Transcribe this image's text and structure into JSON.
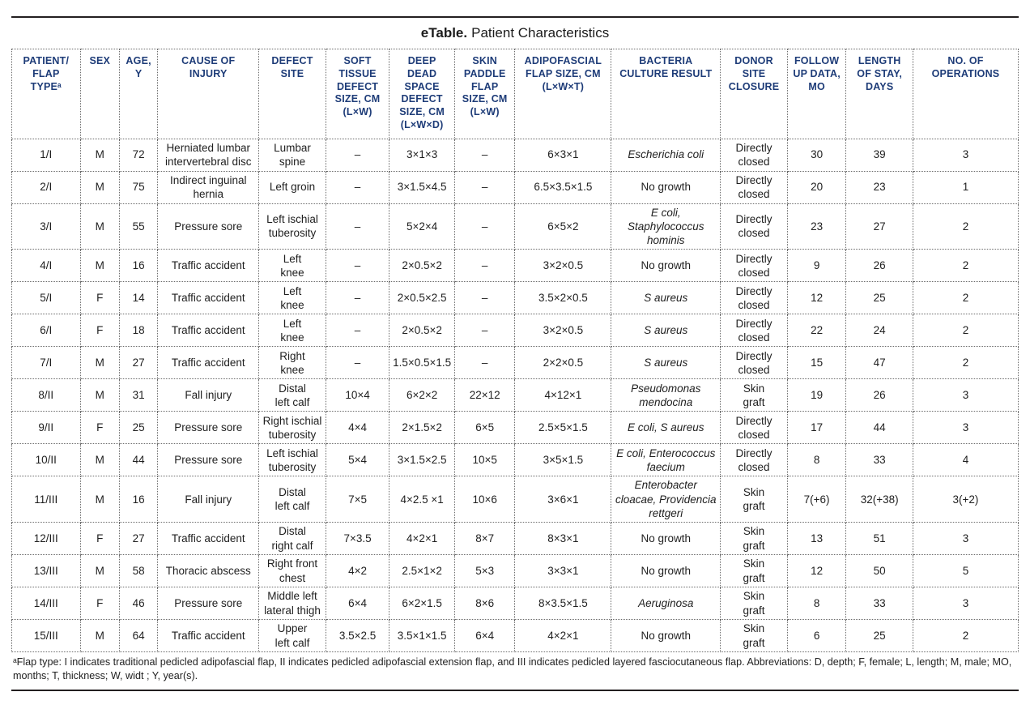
{
  "title": {
    "bold": "eTable.",
    "text": "Patient Characteristics"
  },
  "table": {
    "columns": [
      {
        "id": "patient-flap-type",
        "label": "PATIENT/\nFLAP\nTYPEᵃ"
      },
      {
        "id": "sex",
        "label": "SEX"
      },
      {
        "id": "age",
        "label": "AGE,\nY"
      },
      {
        "id": "cause-of-injury",
        "label": "CAUSE OF\nINJURY"
      },
      {
        "id": "defect-site",
        "label": "DEFECT\nSITE"
      },
      {
        "id": "soft-tissue-defect-size",
        "label": "SOFT\nTISSUE\nDEFECT\nSIZE, CM\n(L×W)"
      },
      {
        "id": "deep-dead-space-defect-size",
        "label": "DEEP\nDEAD\nSPACE\nDEFECT\nSIZE, CM\n(L×W×D)"
      },
      {
        "id": "skin-paddle-flap-size",
        "label": "SKIN\nPADDLE\nFLAP\nSIZE, CM\n(L×W)"
      },
      {
        "id": "adipofascial-flap-size",
        "label": "ADIPOFASCIAL\nFLAP SIZE, CM\n(L×W×T)"
      },
      {
        "id": "bacteria-culture-result",
        "label": "BACTERIA\nCULTURE RESULT"
      },
      {
        "id": "donor-site-closure",
        "label": "DONOR\nSITE\nCLOSURE"
      },
      {
        "id": "follow-up-data",
        "label": "FOLLOW\nUP DATA,\nMO"
      },
      {
        "id": "length-of-stay",
        "label": "LENGTH\nOF STAY,\nDAYS"
      },
      {
        "id": "no-of-operations",
        "label": "NO. OF\nOPERATIONS"
      }
    ],
    "rows": [
      {
        "bacteria_italic": true,
        "cells": [
          "1/I",
          "M",
          "72",
          "Herniated lumbar\nintervertebral disc",
          "Lumbar\nspine",
          "–",
          "3×1×3",
          "–",
          "6×3×1",
          "Escherichia coli",
          "Directly\nclosed",
          "30",
          "39",
          "3"
        ]
      },
      {
        "bacteria_italic": false,
        "cells": [
          "2/I",
          "M",
          "75",
          "Indirect inguinal\nhernia",
          "Left groin",
          "–",
          "3×1.5×4.5",
          "–",
          "6.5×3.5×1.5",
          "No growth",
          "Directly\nclosed",
          "20",
          "23",
          "1"
        ]
      },
      {
        "bacteria_italic": true,
        "cells": [
          "3/I",
          "M",
          "55",
          "Pressure sore",
          "Left ischial\ntuberosity",
          "–",
          "5×2×4",
          "–",
          "6×5×2",
          "E coli,\nStaphylococcus\nhominis",
          "Directly\nclosed",
          "23",
          "27",
          "2"
        ]
      },
      {
        "bacteria_italic": false,
        "cells": [
          "4/I",
          "M",
          "16",
          "Traffic accident",
          "Left\nknee",
          "–",
          "2×0.5×2",
          "–",
          "3×2×0.5",
          "No growth",
          "Directly\nclosed",
          "9",
          "26",
          "2"
        ]
      },
      {
        "bacteria_italic": true,
        "cells": [
          "5/I",
          "F",
          "14",
          "Traffic accident",
          "Left\nknee",
          "–",
          "2×0.5×2.5",
          "–",
          "3.5×2×0.5",
          "S aureus",
          "Directly\nclosed",
          "12",
          "25",
          "2"
        ]
      },
      {
        "bacteria_italic": true,
        "cells": [
          "6/I",
          "F",
          "18",
          "Traffic accident",
          "Left\nknee",
          "–",
          "2×0.5×2",
          "–",
          "3×2×0.5",
          "S aureus",
          "Directly\nclosed",
          "22",
          "24",
          "2"
        ]
      },
      {
        "bacteria_italic": true,
        "cells": [
          "7/I",
          "M",
          "27",
          "Traffic accident",
          "Right\nknee",
          "–",
          "1.5×0.5×1.5",
          "–",
          "2×2×0.5",
          "S aureus",
          "Directly\nclosed",
          "15",
          "47",
          "2"
        ]
      },
      {
        "bacteria_italic": true,
        "cells": [
          "8/II",
          "M",
          "31",
          "Fall injury",
          "Distal\nleft calf",
          "10×4",
          "6×2×2",
          "22×12",
          "4×12×1",
          "Pseudomonas\nmendocina",
          "Skin\ngraft",
          "19",
          "26",
          "3"
        ]
      },
      {
        "bacteria_italic": true,
        "cells": [
          "9/II",
          "F",
          "25",
          "Pressure sore",
          "Right ischial\ntuberosity",
          "4×4",
          "2×1.5×2",
          "6×5",
          "2.5×5×1.5",
          "E coli, S aureus",
          "Directly\nclosed",
          "17",
          "44",
          "3"
        ]
      },
      {
        "bacteria_italic": true,
        "cells": [
          "10/II",
          "M",
          "44",
          "Pressure sore",
          "Left ischial\ntuberosity",
          "5×4",
          "3×1.5×2.5",
          "10×5",
          "3×5×1.5",
          "E coli, Enterococcus\nfaecium",
          "Directly\nclosed",
          "8",
          "33",
          "4"
        ]
      },
      {
        "bacteria_italic": true,
        "cells": [
          "11/III",
          "M",
          "16",
          "Fall injury",
          "Distal\nleft calf",
          "7×5",
          "4×2.5 ×1",
          "10×6",
          "3×6×1",
          "Enterobacter\ncloacae, Providencia\nrettgeri",
          "Skin\ngraft",
          "7(+6)",
          "32(+38)",
          "3(+2)"
        ]
      },
      {
        "bacteria_italic": false,
        "cells": [
          "12/III",
          "F",
          "27",
          "Traffic accident",
          "Distal\nright calf",
          "7×3.5",
          "4×2×1",
          "8×7",
          "8×3×1",
          "No growth",
          "Skin\ngraft",
          "13",
          "51",
          "3"
        ]
      },
      {
        "bacteria_italic": false,
        "cells": [
          "13/III",
          "M",
          "58",
          "Thoracic abscess",
          "Right front\nchest",
          "4×2",
          "2.5×1×2",
          "5×3",
          "3×3×1",
          "No growth",
          "Skin\ngraft",
          "12",
          "50",
          "5"
        ]
      },
      {
        "bacteria_italic": true,
        "cells": [
          "14/III",
          "F",
          "46",
          "Pressure sore",
          "Middle left\nlateral thigh",
          "6×4",
          "6×2×1.5",
          "8×6",
          "8×3.5×1.5",
          "Aeruginosa",
          "Skin\ngraft",
          "8",
          "33",
          "3"
        ]
      },
      {
        "bacteria_italic": false,
        "cells": [
          "15/III",
          "M",
          "64",
          "Traffic accident",
          "Upper\nleft calf",
          "3.5×2.5",
          "3.5×1×1.5",
          "6×4",
          "4×2×1",
          "No growth",
          "Skin\ngraft",
          "6",
          "25",
          "2"
        ]
      }
    ]
  },
  "footnote": "ᵃFlap type: I indicates traditional pedicled adipofascial flap, II indicates pedicled adipofascial extension flap, and III indicates pedicled layered fasciocutaneous flap. Abbreviations: D, depth; F, female; L, length; M, male; MO, months; T, thickness; W, widt ; Y, year(s)."
}
